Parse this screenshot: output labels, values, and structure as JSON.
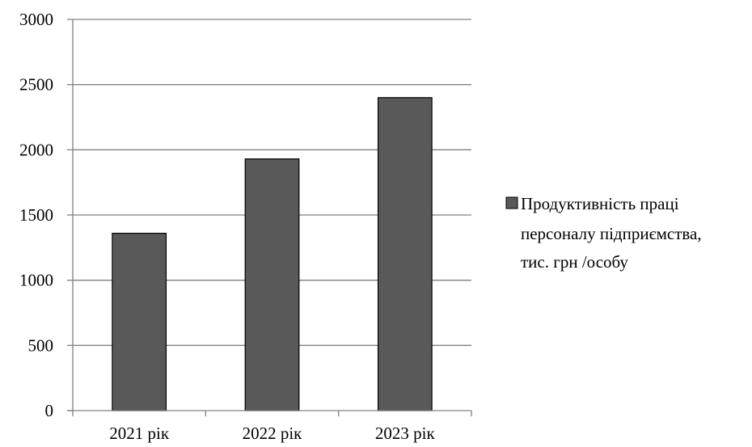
{
  "chart_data": {
    "type": "bar",
    "categories": [
      "2021 рік",
      "2022 рік",
      "2023 рік"
    ],
    "series": [
      {
        "name": "Продуктивність праці персоналу підприємства, тис. грн /особу",
        "legend_lines": [
          "Продуктивність праці",
          "персоналу підприємства,",
          "тис. грн /особу"
        ],
        "values": [
          1360,
          1930,
          2400
        ],
        "color": "#595959"
      }
    ],
    "yticks": [
      "0",
      "500",
      "1000",
      "1500",
      "2000",
      "2500",
      "3000"
    ],
    "ylim": [
      0,
      3000
    ],
    "grid": true,
    "legend_position": "right"
  }
}
